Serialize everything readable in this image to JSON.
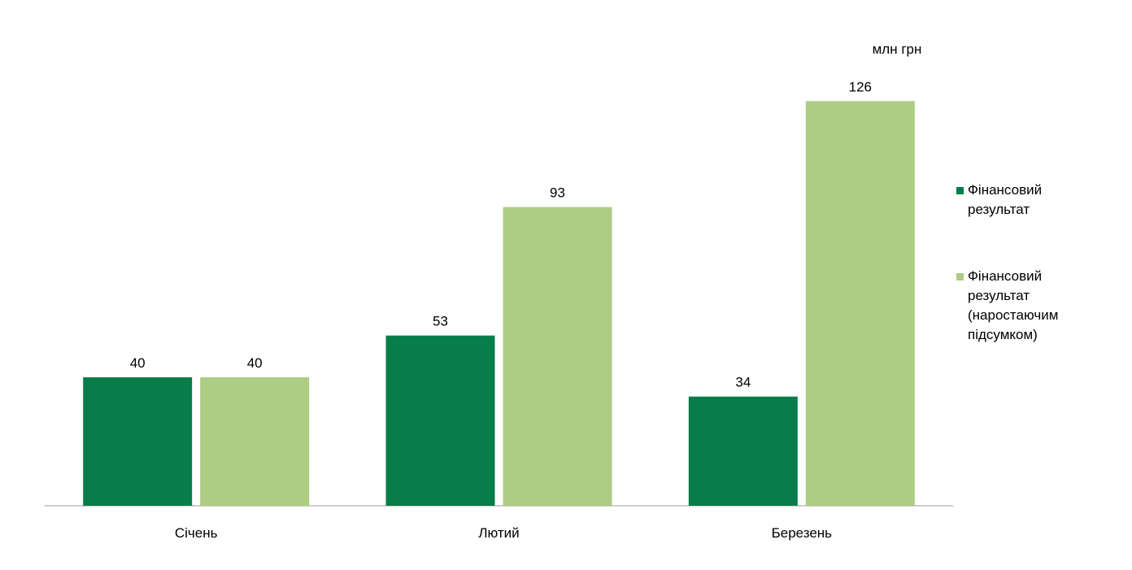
{
  "chart_data": {
    "type": "bar",
    "unit": "млн грн",
    "categories": [
      "Січень",
      "Лютий",
      "Березень"
    ],
    "series": [
      {
        "name": "Фінансовий результат",
        "color": "#077d49",
        "values": [
          40,
          53,
          34
        ]
      },
      {
        "name": "Фінансовий результат (наростаючим підсумком)",
        "color": "#adcc84",
        "values": [
          40,
          93,
          126
        ]
      }
    ],
    "ylim": [
      0,
      140
    ]
  }
}
